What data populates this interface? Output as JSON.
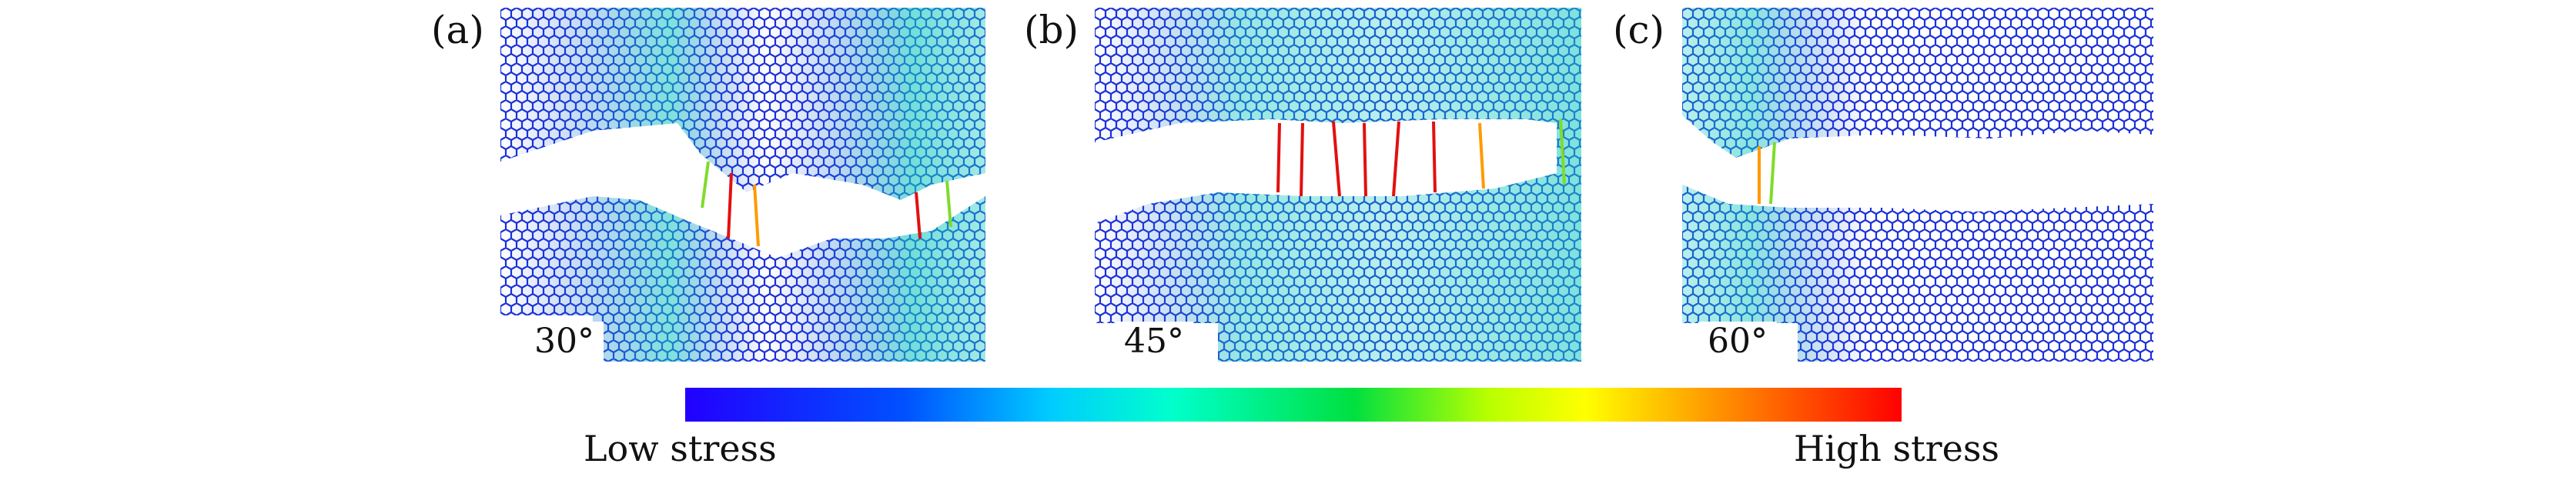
{
  "panels": [
    {
      "letter": "(a)",
      "angle": "30°"
    },
    {
      "letter": "(b)",
      "angle": "45°"
    },
    {
      "letter": "(c)",
      "angle": "60°"
    }
  ],
  "colorbar": {
    "low_label": "Low stress",
    "high_label": "High stress",
    "stops": [
      "#2200ff",
      "#0050ff",
      "#00ccff",
      "#00ffcc",
      "#00e040",
      "#b8ff00",
      "#ffff00",
      "#ff8800",
      "#ff0000"
    ]
  },
  "colors": {
    "lattice_low": "#1a2fd8",
    "lattice_mid": "#18c8c0",
    "bond_high": "#e21010",
    "bond_mid": "#7fdc2a",
    "background": "#ffffff"
  }
}
